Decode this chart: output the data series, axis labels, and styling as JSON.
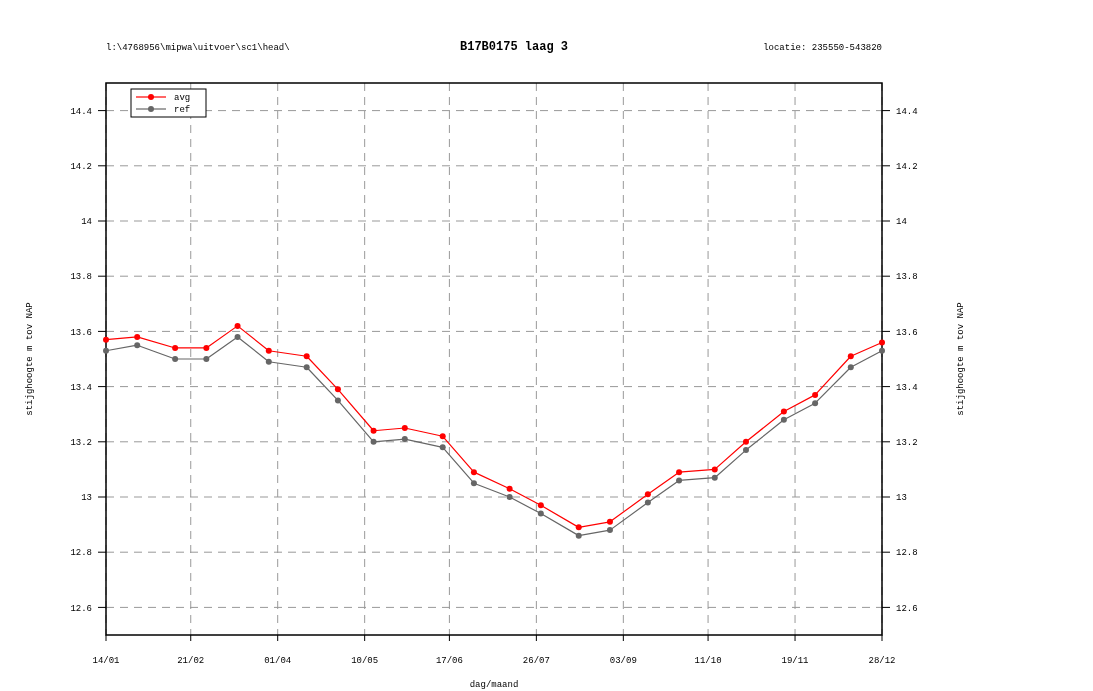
{
  "chart_data": {
    "type": "line",
    "title": "B17B0175 laag 3",
    "xlabel": "dag/maand",
    "ylabel": "stijghoogte m tov NAP",
    "y2label": "stijghoogte m tov NAP",
    "annotations": [
      "l:\\4768956\\mipwa\\uitvoer\\sc1\\head\\",
      "locatie: 235550-543820"
    ],
    "x": [
      "--01-14",
      "--01-28",
      "--02-14",
      "--02-28",
      "--03-14",
      "--03-28",
      "--04-14",
      "--04-28",
      "--05-14",
      "--05-28",
      "--06-14",
      "--06-28",
      "--07-14",
      "--07-28",
      "--08-14",
      "--08-28",
      "--09-14",
      "--09-28",
      "--10-14",
      "--10-28",
      "--11-14",
      "--11-28",
      "--12-14",
      "--12-28"
    ],
    "series": [
      {
        "name": "avg",
        "color": "#ff0000",
        "values": [
          13.57,
          13.58,
          13.54,
          13.54,
          13.62,
          13.53,
          13.51,
          13.39,
          13.24,
          13.25,
          13.22,
          13.09,
          13.03,
          12.97,
          12.89,
          12.91,
          13.01,
          13.09,
          13.1,
          13.2,
          13.31,
          13.37,
          13.51,
          13.56
        ]
      },
      {
        "name": "ref",
        "color": "#666666",
        "values": [
          13.53,
          13.55,
          13.5,
          13.5,
          13.58,
          13.49,
          13.47,
          13.35,
          13.2,
          13.21,
          13.18,
          13.05,
          13.0,
          12.94,
          12.86,
          12.88,
          12.98,
          13.06,
          13.07,
          13.17,
          13.28,
          13.34,
          13.47,
          13.53
        ]
      }
    ],
    "xlim": [
      "--01-14",
      "--12-28"
    ],
    "xticks": [
      {
        "value": "--01-14",
        "label": "14/01"
      },
      {
        "value": "--02-21",
        "label": "21/02"
      },
      {
        "value": "--04-01",
        "label": "01/04"
      },
      {
        "value": "--05-10",
        "label": "10/05"
      },
      {
        "value": "--06-17",
        "label": "17/06"
      },
      {
        "value": "--07-26",
        "label": "26/07"
      },
      {
        "value": "--09-03",
        "label": "03/09"
      },
      {
        "value": "--10-11",
        "label": "11/10"
      },
      {
        "value": "--11-19",
        "label": "19/11"
      },
      {
        "value": "--12-28",
        "label": "28/12"
      }
    ],
    "ylim": [
      12.5,
      14.5
    ],
    "yticks": [
      12.6,
      12.8,
      13,
      13.2,
      13.4,
      13.6,
      13.8,
      14,
      14.2,
      14.4
    ],
    "y2lim": [
      12.5,
      14.5
    ],
    "y2ticks": [
      12.6,
      12.8,
      13,
      13.2,
      13.4,
      13.6,
      13.8,
      14,
      14.2,
      14.4
    ],
    "grid": true,
    "legend": "top left",
    "marker": "circle",
    "line_style": "solid"
  }
}
